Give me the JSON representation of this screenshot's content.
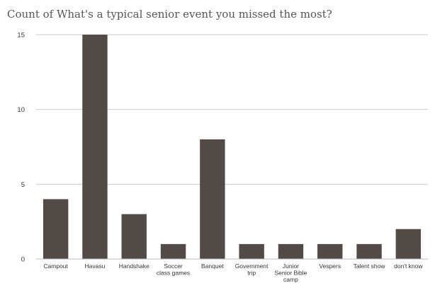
{
  "chart_data": {
    "type": "bar",
    "title": "Count of What's a typical senior event you missed the most?",
    "xlabel": "",
    "ylabel": "",
    "categories": [
      [
        "Campout"
      ],
      [
        "Havasu"
      ],
      [
        "Handshake"
      ],
      [
        "Soccer",
        "class games"
      ],
      [
        "Banquet"
      ],
      [
        "Government",
        "trip"
      ],
      [
        "Junior",
        "Senior Bible",
        "camp"
      ],
      [
        "Vespers"
      ],
      [
        "Talent show"
      ],
      [
        "don't know"
      ]
    ],
    "values": [
      4,
      15,
      3,
      1,
      8,
      1,
      1,
      1,
      1,
      2
    ],
    "ylim": [
      0,
      15
    ],
    "yticks": [
      0,
      5,
      10,
      15
    ],
    "grid": true,
    "bar_color": "#524a47",
    "grid_color": "#cccccc",
    "legend": "none"
  }
}
